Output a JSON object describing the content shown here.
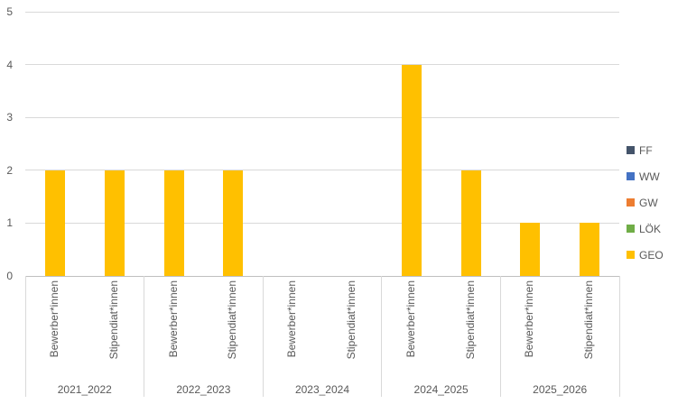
{
  "chart_data": {
    "type": "bar",
    "stacked": true,
    "title": "",
    "groups": [
      "2021_2022",
      "2022_2023",
      "2023_2024",
      "2024_2025",
      "2025_2026"
    ],
    "subcategories": [
      "Bewerber*innen",
      "Stipendiat*innen"
    ],
    "series": [
      {
        "name": "FF",
        "color": "#44546A",
        "values": [
          [
            0,
            0
          ],
          [
            0,
            0
          ],
          [
            0,
            0
          ],
          [
            0,
            0
          ],
          [
            0,
            0
          ]
        ]
      },
      {
        "name": "WW",
        "color": "#4472C4",
        "values": [
          [
            0,
            0
          ],
          [
            0,
            0
          ],
          [
            0,
            0
          ],
          [
            0,
            0
          ],
          [
            0,
            0
          ]
        ]
      },
      {
        "name": "GW",
        "color": "#ED7D31",
        "values": [
          [
            0,
            0
          ],
          [
            0,
            0
          ],
          [
            0,
            0
          ],
          [
            0,
            0
          ],
          [
            0,
            0
          ]
        ]
      },
      {
        "name": "LÖK",
        "color": "#70AD47",
        "values": [
          [
            0,
            0
          ],
          [
            0,
            0
          ],
          [
            0,
            0
          ],
          [
            0,
            0
          ],
          [
            0,
            0
          ]
        ]
      },
      {
        "name": "GEO",
        "color": "#FFC000",
        "values": [
          [
            2,
            2
          ],
          [
            2,
            2
          ],
          [
            0,
            0
          ],
          [
            4,
            2
          ],
          [
            1,
            1
          ]
        ]
      }
    ],
    "y_axis": {
      "min": 0,
      "max": 5,
      "step": 1,
      "tick_labels": [
        "0",
        "1",
        "2",
        "3",
        "4",
        "5"
      ]
    },
    "legend": {
      "position": "right",
      "entries": [
        "FF",
        "WW",
        "GW",
        "LÖK",
        "GEO"
      ]
    },
    "grid": true
  },
  "style": {
    "text_color": "#595959",
    "gridline_color": "#D9D9D9",
    "axis_line_color": "#BFBFBF",
    "divider_color": "#D9D9D9",
    "background": "#FFFFFF"
  }
}
